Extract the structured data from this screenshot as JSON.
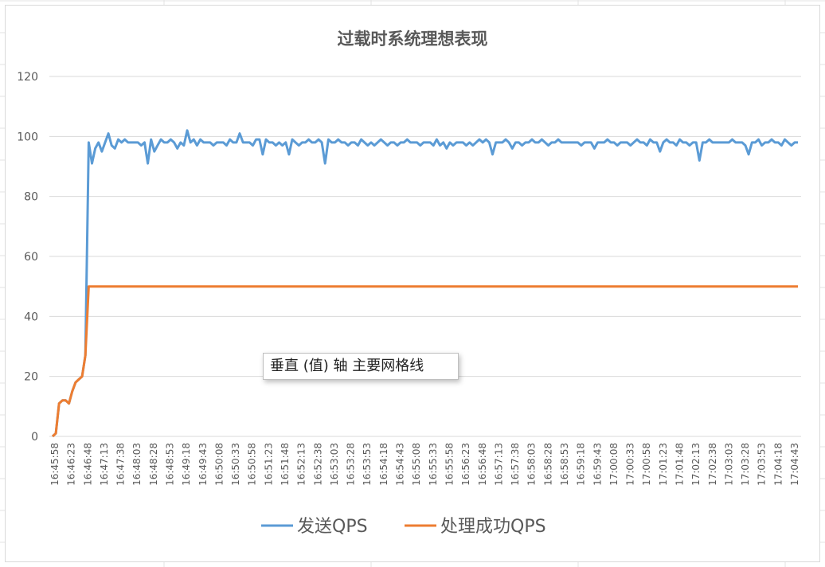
{
  "colors": {
    "series1": "#5b9bd5",
    "series2": "#ed7d31",
    "gridline": "#d9d9d9",
    "text": "#595959"
  },
  "tooltip": "垂直 (值) 轴 主要网格线",
  "chart_data": {
    "type": "line",
    "title": "过载时系统理想表现",
    "ylim": [
      0,
      120
    ],
    "y_ticks": [
      "0",
      "20",
      "40",
      "60",
      "80",
      "100",
      "120"
    ],
    "grid": "horizontal",
    "legend_position": "bottom",
    "x_tick_labels": [
      "16:45:58",
      "16:46:23",
      "16:46:48",
      "16:47:13",
      "16:47:38",
      "16:48:03",
      "16:48:28",
      "16:48:53",
      "16:49:18",
      "16:49:43",
      "16:50:08",
      "16:50:33",
      "16:50:58",
      "16:51:23",
      "16:51:48",
      "16:52:13",
      "16:52:38",
      "16:53:03",
      "16:53:28",
      "16:53:53",
      "16:54:18",
      "16:54:43",
      "16:55:08",
      "16:55:33",
      "16:55:58",
      "16:56:23",
      "16:56:48",
      "16:57:13",
      "16:57:38",
      "16:58:03",
      "16:58:28",
      "16:58:53",
      "16:59:18",
      "16:59:43",
      "17:00:08",
      "17:00:33",
      "17:00:58",
      "17:01:23",
      "17:01:48",
      "17:02:13",
      "17:02:38",
      "17:03:03",
      "17:03:28",
      "17:03:53",
      "17:04:18",
      "17:04:43"
    ],
    "series": [
      {
        "name": "发送QPS",
        "points": [
          [
            0,
            0
          ],
          [
            1,
            1
          ],
          [
            2,
            11
          ],
          [
            3,
            12
          ],
          [
            4,
            12
          ],
          [
            5,
            11
          ],
          [
            6,
            15
          ],
          [
            7,
            18
          ],
          [
            8,
            19
          ],
          [
            9,
            20
          ],
          [
            10,
            27
          ],
          [
            11,
            98
          ],
          [
            12,
            91
          ],
          [
            13,
            96
          ],
          [
            14,
            98
          ],
          [
            15,
            95
          ],
          [
            16,
            98
          ],
          [
            17,
            101
          ],
          [
            18,
            97
          ],
          [
            19,
            96
          ],
          [
            20,
            99
          ],
          [
            21,
            98
          ],
          [
            22,
            99
          ],
          [
            23,
            98
          ],
          [
            24,
            98
          ],
          [
            25,
            98
          ],
          [
            26,
            98
          ],
          [
            27,
            97
          ],
          [
            28,
            98
          ],
          [
            29,
            91
          ],
          [
            30,
            99
          ],
          [
            31,
            95
          ],
          [
            32,
            97
          ],
          [
            33,
            99
          ],
          [
            34,
            98
          ],
          [
            35,
            98
          ],
          [
            36,
            99
          ],
          [
            37,
            98
          ],
          [
            38,
            96
          ],
          [
            39,
            98
          ],
          [
            40,
            97
          ],
          [
            41,
            102
          ],
          [
            42,
            98
          ],
          [
            43,
            99
          ],
          [
            44,
            97
          ],
          [
            45,
            99
          ],
          [
            46,
            98
          ],
          [
            47,
            98
          ],
          [
            48,
            98
          ],
          [
            49,
            97
          ],
          [
            50,
            98
          ],
          [
            51,
            98
          ],
          [
            52,
            98
          ],
          [
            53,
            97
          ],
          [
            54,
            99
          ],
          [
            55,
            98
          ],
          [
            56,
            98
          ],
          [
            57,
            101
          ],
          [
            58,
            98
          ],
          [
            59,
            98
          ],
          [
            60,
            98
          ],
          [
            61,
            97
          ],
          [
            62,
            99
          ],
          [
            63,
            99
          ],
          [
            64,
            94
          ],
          [
            65,
            99
          ],
          [
            66,
            98
          ],
          [
            67,
            98
          ],
          [
            68,
            97
          ],
          [
            69,
            98
          ],
          [
            70,
            97
          ],
          [
            71,
            98
          ],
          [
            72,
            94
          ],
          [
            73,
            99
          ],
          [
            74,
            98
          ],
          [
            75,
            97
          ],
          [
            76,
            98
          ],
          [
            77,
            98
          ],
          [
            78,
            99
          ],
          [
            79,
            98
          ],
          [
            80,
            98
          ],
          [
            81,
            99
          ],
          [
            82,
            98
          ],
          [
            83,
            91
          ],
          [
            84,
            99
          ],
          [
            85,
            98
          ],
          [
            86,
            98
          ],
          [
            87,
            99
          ],
          [
            88,
            98
          ],
          [
            89,
            98
          ],
          [
            90,
            97
          ],
          [
            91,
            98
          ],
          [
            92,
            98
          ],
          [
            93,
            97
          ],
          [
            94,
            99
          ],
          [
            95,
            98
          ],
          [
            96,
            97
          ],
          [
            97,
            98
          ],
          [
            98,
            97
          ],
          [
            99,
            98
          ],
          [
            100,
            99
          ],
          [
            101,
            98
          ],
          [
            102,
            97
          ],
          [
            103,
            98
          ],
          [
            104,
            98
          ],
          [
            105,
            97
          ],
          [
            106,
            98
          ],
          [
            107,
            98
          ],
          [
            108,
            99
          ],
          [
            109,
            98
          ],
          [
            110,
            98
          ],
          [
            111,
            98
          ],
          [
            112,
            97
          ],
          [
            113,
            98
          ],
          [
            114,
            98
          ],
          [
            115,
            98
          ],
          [
            116,
            97
          ],
          [
            117,
            99
          ],
          [
            118,
            97
          ],
          [
            119,
            98
          ],
          [
            120,
            96
          ],
          [
            121,
            98
          ],
          [
            122,
            97
          ],
          [
            123,
            98
          ],
          [
            124,
            98
          ],
          [
            125,
            98
          ],
          [
            126,
            97
          ],
          [
            127,
            98
          ],
          [
            128,
            97
          ],
          [
            129,
            98
          ],
          [
            130,
            99
          ],
          [
            131,
            98
          ],
          [
            132,
            99
          ],
          [
            133,
            98
          ],
          [
            134,
            94
          ],
          [
            135,
            98
          ],
          [
            136,
            98
          ],
          [
            137,
            98
          ],
          [
            138,
            99
          ],
          [
            139,
            98
          ],
          [
            140,
            96
          ],
          [
            141,
            98
          ],
          [
            142,
            98
          ],
          [
            143,
            97
          ],
          [
            144,
            98
          ],
          [
            145,
            98
          ],
          [
            146,
            99
          ],
          [
            147,
            98
          ],
          [
            148,
            98
          ],
          [
            149,
            99
          ],
          [
            150,
            98
          ],
          [
            151,
            97
          ],
          [
            152,
            98
          ],
          [
            153,
            98
          ],
          [
            154,
            99
          ],
          [
            155,
            98
          ],
          [
            156,
            98
          ],
          [
            157,
            98
          ],
          [
            158,
            98
          ],
          [
            159,
            98
          ],
          [
            160,
            98
          ],
          [
            161,
            97
          ],
          [
            162,
            98
          ],
          [
            163,
            98
          ],
          [
            164,
            98
          ],
          [
            165,
            96
          ],
          [
            166,
            98
          ],
          [
            167,
            98
          ],
          [
            168,
            98
          ],
          [
            169,
            99
          ],
          [
            170,
            98
          ],
          [
            171,
            98
          ],
          [
            172,
            97
          ],
          [
            173,
            98
          ],
          [
            174,
            98
          ],
          [
            175,
            98
          ],
          [
            176,
            97
          ],
          [
            177,
            98
          ],
          [
            178,
            99
          ],
          [
            179,
            98
          ],
          [
            180,
            98
          ],
          [
            181,
            97
          ],
          [
            182,
            99
          ],
          [
            183,
            98
          ],
          [
            184,
            98
          ],
          [
            185,
            95
          ],
          [
            186,
            98
          ],
          [
            187,
            99
          ],
          [
            188,
            98
          ],
          [
            189,
            98
          ],
          [
            190,
            97
          ],
          [
            191,
            99
          ],
          [
            192,
            98
          ],
          [
            193,
            98
          ],
          [
            194,
            97
          ],
          [
            195,
            98
          ],
          [
            196,
            98
          ],
          [
            197,
            92
          ],
          [
            198,
            98
          ],
          [
            199,
            98
          ],
          [
            200,
            99
          ],
          [
            201,
            98
          ],
          [
            202,
            98
          ],
          [
            203,
            98
          ],
          [
            204,
            98
          ],
          [
            205,
            98
          ],
          [
            206,
            98
          ],
          [
            207,
            99
          ],
          [
            208,
            98
          ],
          [
            209,
            98
          ],
          [
            210,
            98
          ],
          [
            211,
            97
          ],
          [
            212,
            94
          ],
          [
            213,
            98
          ],
          [
            214,
            98
          ],
          [
            215,
            99
          ],
          [
            216,
            97
          ],
          [
            217,
            98
          ],
          [
            218,
            98
          ],
          [
            219,
            99
          ],
          [
            220,
            98
          ],
          [
            221,
            98
          ],
          [
            222,
            97
          ],
          [
            223,
            99
          ],
          [
            224,
            98
          ],
          [
            225,
            97
          ],
          [
            226,
            98
          ],
          [
            227,
            98
          ]
        ]
      },
      {
        "name": "处理成功QPS",
        "points": [
          [
            0,
            0
          ],
          [
            1,
            1
          ],
          [
            2,
            11
          ],
          [
            3,
            12
          ],
          [
            4,
            12
          ],
          [
            5,
            11
          ],
          [
            6,
            15
          ],
          [
            7,
            18
          ],
          [
            8,
            19
          ],
          [
            9,
            20
          ],
          [
            10,
            27
          ],
          [
            11,
            50
          ],
          [
            227,
            50
          ]
        ]
      }
    ]
  }
}
